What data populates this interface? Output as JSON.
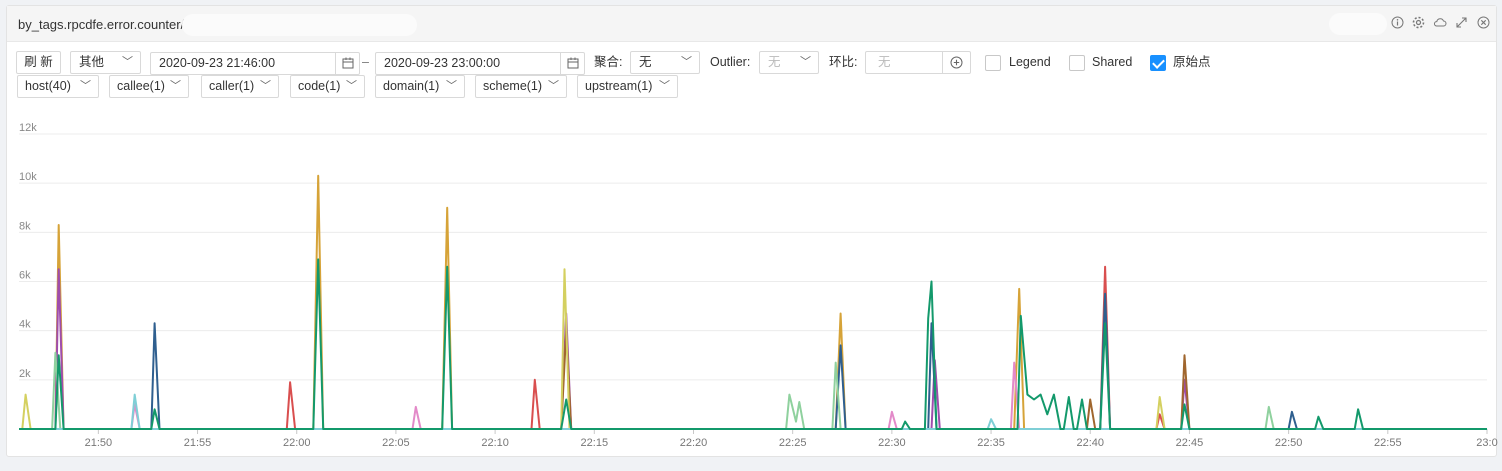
{
  "panel": {
    "title": "by_tags.rpcdfe.error.counter/",
    "header_icons": [
      "info-icon",
      "gear-icon",
      "cloud-icon",
      "expand-icon",
      "close-icon"
    ]
  },
  "toolbar": {
    "refresh_label": "刷 新",
    "range_select": "其他",
    "start_time": "2020-09-23 21:46:00",
    "time_separator": "–",
    "end_time": "2020-09-23 23:00:00",
    "aggregate_label": "聚合:",
    "aggregate_value": "无",
    "outlier_label": "Outlier:",
    "outlier_value": "无",
    "compare_label": "环比:",
    "compare_placeholder": "无",
    "legend_label": "Legend",
    "legend_checked": false,
    "shared_label": "Shared",
    "shared_checked": false,
    "raw_points_label": "原始点",
    "raw_points_checked": true
  },
  "tag_filters": [
    "host(40)",
    "callee(1)",
    "caller(1)",
    "code(1)",
    "domain(1)",
    "scheme(1)",
    "upstream(1)"
  ],
  "chart_data": {
    "type": "line",
    "title": "",
    "xlabel": "",
    "ylabel": "",
    "ylim": [
      0,
      12000
    ],
    "y_ticks": [
      "0",
      "2k",
      "4k",
      "6k",
      "8k",
      "10k",
      "12k"
    ],
    "x_range": [
      "21:46",
      "23:00"
    ],
    "x_ticks": [
      "21:50",
      "21:55",
      "22:00",
      "22:05",
      "22:10",
      "22:15",
      "22:20",
      "22:25",
      "22:30",
      "22:35",
      "22:40",
      "22:45",
      "22:50",
      "22:55",
      "23:0"
    ],
    "grid": true,
    "legend": "none",
    "series": [
      {
        "color": "#d6a338",
        "points": [
          [
            "21:47:50",
            0
          ],
          [
            "21:48:00",
            8300
          ],
          [
            "21:48:15",
            0
          ],
          [
            "22:00:50",
            0
          ],
          [
            "22:01:05",
            10300
          ],
          [
            "22:01:20",
            0
          ],
          [
            "22:07:20",
            0
          ],
          [
            "22:07:35",
            9000
          ],
          [
            "22:07:50",
            0
          ],
          [
            "22:27:10",
            0
          ],
          [
            "22:27:25",
            4700
          ],
          [
            "22:27:40",
            0
          ],
          [
            "22:36:10",
            0
          ],
          [
            "22:36:25",
            5700
          ],
          [
            "22:36:40",
            0
          ]
        ]
      },
      {
        "color": "#9f4dad",
        "points": [
          [
            "21:47:50",
            0
          ],
          [
            "21:48:00",
            6500
          ],
          [
            "21:48:15",
            0
          ],
          [
            "22:13:20",
            0
          ],
          [
            "22:13:35",
            4700
          ],
          [
            "22:13:50",
            0
          ],
          [
            "22:32:00",
            0
          ],
          [
            "22:32:10",
            2800
          ],
          [
            "22:32:25",
            0
          ],
          [
            "22:44:35",
            0
          ],
          [
            "22:44:45",
            2000
          ],
          [
            "22:45:00",
            0
          ]
        ]
      },
      {
        "color": "#d94f4f",
        "points": [
          [
            "21:59:30",
            0
          ],
          [
            "21:59:40",
            1900
          ],
          [
            "21:59:55",
            0
          ],
          [
            "22:11:50",
            0
          ],
          [
            "22:12:00",
            2000
          ],
          [
            "22:12:15",
            0
          ],
          [
            "22:40:30",
            0
          ],
          [
            "22:40:45",
            6600
          ],
          [
            "22:41:00",
            0
          ],
          [
            "22:43:20",
            0
          ],
          [
            "22:43:30",
            600
          ],
          [
            "22:43:45",
            0
          ]
        ]
      },
      {
        "color": "#2f5f8f",
        "points": [
          [
            "21:52:40",
            0
          ],
          [
            "21:52:50",
            4300
          ],
          [
            "21:53:05",
            0
          ],
          [
            "22:27:10",
            0
          ],
          [
            "22:27:25",
            3400
          ],
          [
            "22:27:40",
            0
          ],
          [
            "22:31:50",
            0
          ],
          [
            "22:32:00",
            4300
          ],
          [
            "22:32:15",
            0
          ],
          [
            "22:40:30",
            0
          ],
          [
            "22:40:45",
            5500
          ],
          [
            "22:41:00",
            0
          ],
          [
            "22:50:00",
            0
          ],
          [
            "22:50:10",
            700
          ],
          [
            "22:50:25",
            0
          ]
        ]
      },
      {
        "color": "#a0662e",
        "points": [
          [
            "22:13:20",
            0
          ],
          [
            "22:13:35",
            4000
          ],
          [
            "22:13:50",
            0
          ],
          [
            "22:39:50",
            0
          ],
          [
            "22:40:00",
            1200
          ],
          [
            "22:40:15",
            0
          ],
          [
            "22:44:35",
            0
          ],
          [
            "22:44:45",
            3000
          ],
          [
            "22:45:00",
            0
          ]
        ]
      },
      {
        "color": "#d4d060",
        "points": [
          [
            "21:46:10",
            0
          ],
          [
            "21:46:20",
            1400
          ],
          [
            "21:46:35",
            0
          ],
          [
            "22:13:20",
            0
          ],
          [
            "22:13:30",
            6500
          ],
          [
            "22:13:45",
            0
          ],
          [
            "22:43:20",
            0
          ],
          [
            "22:43:30",
            1300
          ],
          [
            "22:43:45",
            0
          ]
        ]
      },
      {
        "color": "#8fd19e",
        "points": [
          [
            "21:47:40",
            0
          ],
          [
            "21:47:50",
            3100
          ],
          [
            "21:48:05",
            0
          ],
          [
            "22:24:40",
            0
          ],
          [
            "22:24:50",
            1400
          ],
          [
            "22:25:10",
            300
          ],
          [
            "22:25:20",
            1100
          ],
          [
            "22:25:35",
            0
          ],
          [
            "22:27:00",
            0
          ],
          [
            "22:27:10",
            2700
          ],
          [
            "22:27:25",
            0
          ],
          [
            "22:48:50",
            0
          ],
          [
            "22:49:00",
            900
          ],
          [
            "22:49:15",
            0
          ]
        ]
      },
      {
        "color": "#e38ac9",
        "points": [
          [
            "21:51:40",
            0
          ],
          [
            "21:51:50",
            1000
          ],
          [
            "21:52:05",
            0
          ],
          [
            "22:05:50",
            0
          ],
          [
            "22:06:00",
            900
          ],
          [
            "22:06:15",
            0
          ],
          [
            "22:29:50",
            0
          ],
          [
            "22:30:00",
            700
          ],
          [
            "22:30:15",
            0
          ],
          [
            "22:36:00",
            0
          ],
          [
            "22:36:10",
            2700
          ],
          [
            "22:36:25",
            0
          ]
        ]
      },
      {
        "color": "#7fcfd6",
        "points": [
          [
            "21:51:40",
            0
          ],
          [
            "21:51:50",
            1400
          ],
          [
            "21:52:05",
            0
          ],
          [
            "22:34:50",
            0
          ],
          [
            "22:35:00",
            400
          ],
          [
            "22:35:15",
            0
          ]
        ]
      },
      {
        "color": "#13996b",
        "points": [
          [
            "21:47:50",
            0
          ],
          [
            "21:48:00",
            3000
          ],
          [
            "21:48:15",
            0
          ],
          [
            "21:52:40",
            0
          ],
          [
            "21:52:50",
            800
          ],
          [
            "21:53:05",
            0
          ],
          [
            "22:00:50",
            0
          ],
          [
            "22:01:05",
            6900
          ],
          [
            "22:01:20",
            0
          ],
          [
            "22:07:20",
            0
          ],
          [
            "22:07:35",
            6600
          ],
          [
            "22:07:50",
            0
          ],
          [
            "22:13:20",
            0
          ],
          [
            "22:13:35",
            1200
          ],
          [
            "22:13:50",
            0
          ],
          [
            "22:30:30",
            0
          ],
          [
            "22:30:40",
            300
          ],
          [
            "22:30:55",
            0
          ],
          [
            "22:31:40",
            0
          ],
          [
            "22:31:50",
            4500
          ],
          [
            "22:32:00",
            6000
          ],
          [
            "22:32:15",
            0
          ],
          [
            "22:36:20",
            0
          ],
          [
            "22:36:30",
            4600
          ],
          [
            "22:36:50",
            1400
          ],
          [
            "22:37:10",
            1200
          ],
          [
            "22:37:30",
            1400
          ],
          [
            "22:37:50",
            600
          ],
          [
            "22:38:10",
            1400
          ],
          [
            "22:38:30",
            0
          ],
          [
            "22:38:40",
            0
          ],
          [
            "22:38:55",
            1300
          ],
          [
            "22:39:10",
            0
          ],
          [
            "22:39:20",
            0
          ],
          [
            "22:39:35",
            1200
          ],
          [
            "22:39:50",
            0
          ],
          [
            "22:40:30",
            0
          ],
          [
            "22:40:45",
            4300
          ],
          [
            "22:41:00",
            0
          ],
          [
            "22:44:35",
            0
          ],
          [
            "22:44:45",
            1000
          ],
          [
            "22:45:00",
            0
          ],
          [
            "22:51:20",
            0
          ],
          [
            "22:51:30",
            500
          ],
          [
            "22:51:45",
            0
          ],
          [
            "22:53:20",
            0
          ],
          [
            "22:53:30",
            800
          ],
          [
            "22:53:45",
            0
          ]
        ]
      }
    ]
  }
}
